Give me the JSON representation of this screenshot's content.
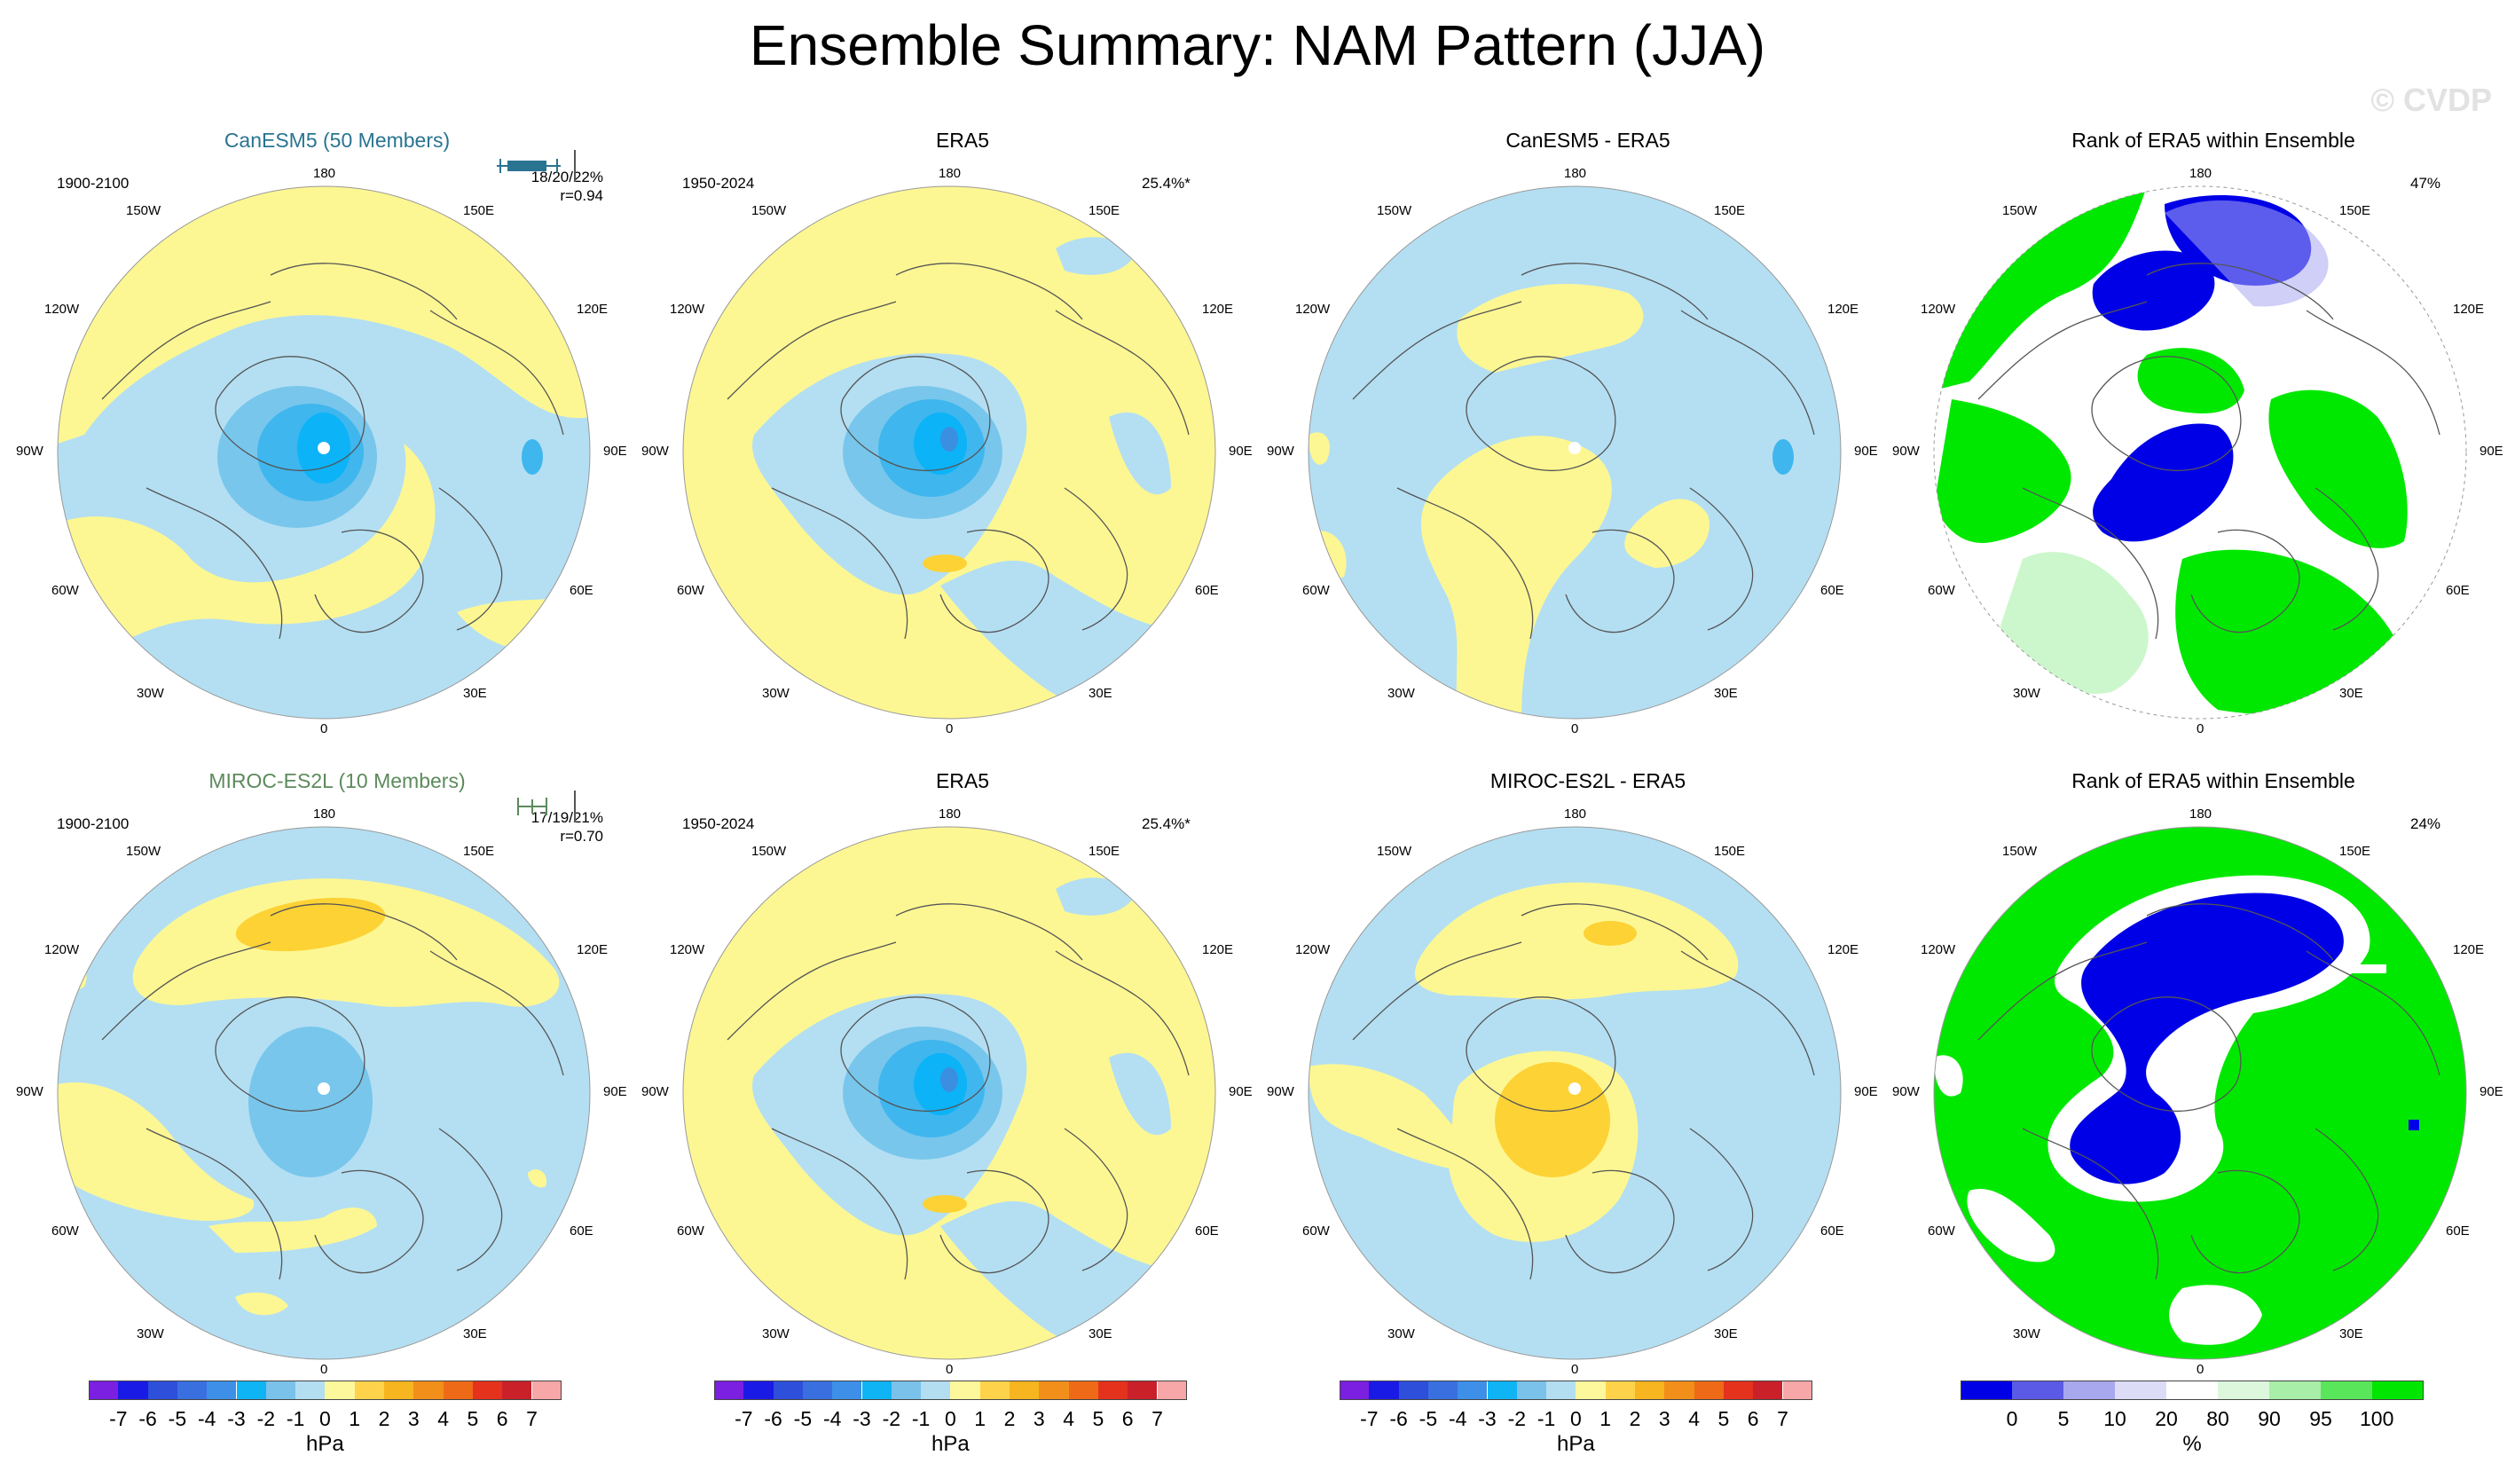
{
  "title": "Ensemble Summary: NAM Pattern (JJA)",
  "watermark": "© CVDP",
  "longitude_labels": {
    "top": "180",
    "bottom": "0",
    "upper_left": "150W",
    "upper_right": "150E",
    "mid_upper_left": "120W",
    "mid_upper_right": "120E",
    "left": "90W",
    "right": "90E",
    "mid_lower_left": "60W",
    "mid_lower_right": "60E",
    "lower_left": "30W",
    "lower_right": "30E"
  },
  "rows": [
    {
      "model_title": "CanESM5 (50 Members)",
      "model_period": "1900-2100",
      "model_stats": "18/20/22%",
      "model_r": "r=0.94",
      "obs_title": "ERA5",
      "obs_period": "1950-2024",
      "obs_pct": "25.4%*",
      "diff_title": "CanESM5 - ERA5",
      "rank_title": "Rank of ERA5 within Ensemble",
      "rank_pct": "47%"
    },
    {
      "model_title": "MIROC-ES2L (10 Members)",
      "model_period": "1900-2100",
      "model_stats": "17/19/21%",
      "model_r": "r=0.70",
      "obs_title": "ERA5",
      "obs_period": "1950-2024",
      "obs_pct": "25.4%*",
      "diff_title": "MIROC-ES2L - ERA5",
      "rank_title": "Rank of ERA5 within Ensemble",
      "rank_pct": "24%"
    }
  ],
  "colorbar_hpa": {
    "labels": [
      "-7",
      "-6",
      "-5",
      "-4",
      "-3",
      "-2",
      "-1",
      "0",
      "1",
      "2",
      "3",
      "4",
      "5",
      "6",
      "7"
    ],
    "colors": [
      "#7b1fe0",
      "#1a1ae6",
      "#2e4fd9",
      "#3a6fe0",
      "#3d8fe8",
      "#0fb4f5",
      "#7ac2ea",
      "#b3def2",
      "#fef89c",
      "#fed34b",
      "#f7b520",
      "#f28f1a",
      "#ee6a17",
      "#e4321c",
      "#c9202a",
      "#f7a7a7"
    ],
    "unit": "hPa"
  },
  "colorbar_rank": {
    "labels": [
      "0",
      "5",
      "10",
      "20",
      "80",
      "90",
      "95",
      "100"
    ],
    "colors": [
      "#0000e6",
      "#5a5ae6",
      "#a8a8ee",
      "#dcdcf7",
      "#ffffff",
      "#dcf7dc",
      "#a8eea8",
      "#5ae65a",
      "#00e600"
    ],
    "unit": "%"
  },
  "palette": {
    "land": "#b4dff2",
    "pos1": "#fdf793",
    "pos2": "#fdd235",
    "neg1": "#b4dff2",
    "neg2": "#78c6ec",
    "neg3": "#3fb6ee",
    "neg4": "#0cb3f7",
    "neg5": "#3a8fe0",
    "rank_green": "#00e800",
    "rank_green_light": "#ccf7cc",
    "rank_blue": "#0000e6",
    "rank_blue_light": "#a8a8f2",
    "rank_white": "#ffffff"
  }
}
